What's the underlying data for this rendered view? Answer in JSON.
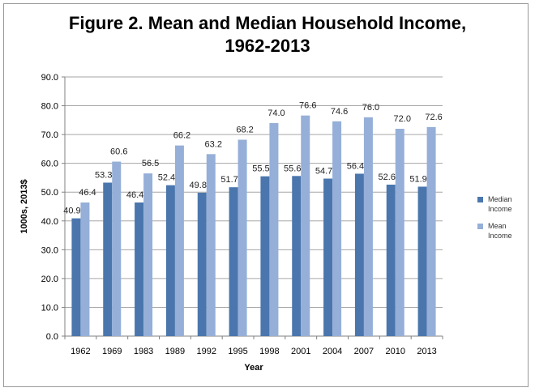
{
  "chart_data": {
    "type": "bar",
    "title": "Figure 2. Mean and Median Household Income, 1962-2013",
    "title_lines": [
      "Figure 2. Mean and Median Household Income,",
      "1962-2013"
    ],
    "xlabel": "Year",
    "ylabel": "1000s, 2013$",
    "ylim": [
      0,
      90
    ],
    "yticks": [
      "0.0",
      "10.0",
      "20.0",
      "30.0",
      "40.0",
      "50.0",
      "60.0",
      "70.0",
      "80.0",
      "90.0"
    ],
    "categories": [
      "1962",
      "1969",
      "1983",
      "1989",
      "1992",
      "1995",
      "1998",
      "2001",
      "2004",
      "2007",
      "2010",
      "2013"
    ],
    "series": [
      {
        "name": "Median Income",
        "legend_lines": [
          "Median",
          "Income"
        ],
        "color": "#4a76ad",
        "values": [
          40.9,
          53.3,
          46.4,
          52.4,
          49.8,
          51.7,
          55.5,
          55.6,
          54.7,
          56.4,
          52.6,
          51.9
        ]
      },
      {
        "name": "Mean Income",
        "legend_lines": [
          "Mean",
          "Income"
        ],
        "color": "#95afd8",
        "values": [
          46.4,
          60.6,
          56.5,
          66.2,
          63.2,
          68.2,
          74.0,
          76.6,
          74.6,
          76.0,
          72.0,
          72.6
        ]
      }
    ],
    "grid": true,
    "legend_position": "right"
  }
}
